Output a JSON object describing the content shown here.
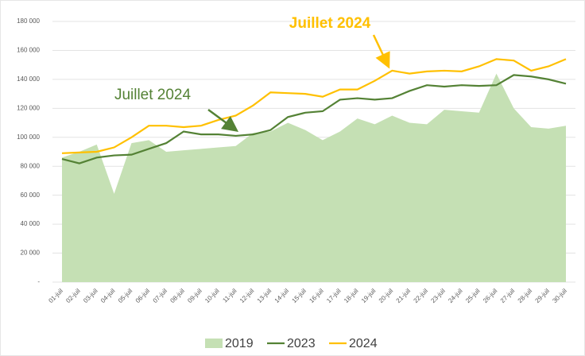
{
  "chart_data": {
    "type": "area_line",
    "categories": [
      "01-juil",
      "02-juil",
      "03-juil",
      "04-juil",
      "05-juil",
      "06-juil",
      "07-juil",
      "08-juil",
      "09-juil",
      "10-juil",
      "11-juil",
      "12-juil",
      "13-juil",
      "14-juil",
      "15-juil",
      "16-juil",
      "17-juil",
      "18-juil",
      "19-juil",
      "20-juil",
      "21-juil",
      "22-juil",
      "23-juil",
      "24-juil",
      "25-juil",
      "26-juil",
      "27-juil",
      "28-juil",
      "29-juil",
      "30-juil"
    ],
    "series": [
      {
        "name": "2019",
        "kind": "area",
        "color": "#c5e0b4",
        "values": [
          86000,
          90000,
          95000,
          61000,
          96000,
          98000,
          90000,
          91000,
          92000,
          93000,
          94000,
          103000,
          104000,
          110000,
          105000,
          98000,
          104000,
          113000,
          109000,
          115000,
          110000,
          109000,
          119000,
          118000,
          117000,
          144000,
          120000,
          107000,
          106000,
          108000
        ]
      },
      {
        "name": "2023",
        "kind": "line",
        "color": "#548235",
        "values": [
          85000,
          82000,
          86000,
          87500,
          88000,
          92000,
          96000,
          104000,
          102000,
          102000,
          101000,
          102000,
          105000,
          114000,
          117000,
          118000,
          126000,
          127000,
          126000,
          127000,
          132000,
          136000,
          135000,
          136000,
          135500,
          136000,
          143000,
          142000,
          140000,
          137000
        ]
      },
      {
        "name": "2024",
        "kind": "line",
        "color": "#ffc000",
        "values": [
          89000,
          89500,
          90000,
          93000,
          100000,
          108000,
          108000,
          107000,
          108000,
          112000,
          115000,
          122000,
          131000,
          130500,
          130000,
          128000,
          133000,
          133000,
          139000,
          146000,
          144000,
          145500,
          146000,
          145500,
          149000,
          154000,
          153000,
          146000,
          149000,
          154000
        ]
      }
    ],
    "ylim": [
      0,
      180000
    ],
    "yticks": [
      {
        "value": 0,
        "label": "-"
      },
      {
        "value": 20000,
        "label": "20 000"
      },
      {
        "value": 40000,
        "label": "40 000"
      },
      {
        "value": 60000,
        "label": "60 000"
      },
      {
        "value": 80000,
        "label": "80 000"
      },
      {
        "value": 100000,
        "label": "100 000"
      },
      {
        "value": 120000,
        "label": "120 000"
      },
      {
        "value": 140000,
        "label": "140 000"
      },
      {
        "value": 160000,
        "label": "160 000"
      },
      {
        "value": 180000,
        "label": "180 000"
      }
    ],
    "grid": true,
    "legend": "bottom",
    "annotations": [
      {
        "text": "Juillet 2024",
        "color": "#ffc000"
      },
      {
        "text": "Juillet 2024",
        "color": "#548235"
      }
    ]
  }
}
